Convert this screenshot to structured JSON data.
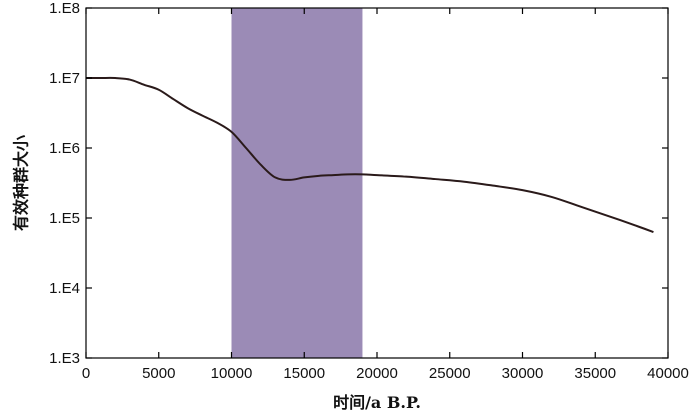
{
  "chart_data": {
    "type": "line",
    "xlabel": "时间/a B.P.",
    "ylabel": "有效种群大小",
    "xlim": [
      0,
      40000
    ],
    "ylim": [
      1000,
      100000000
    ],
    "y_scale": "log",
    "grid": false,
    "x_ticks": [
      0,
      5000,
      10000,
      15000,
      20000,
      25000,
      30000,
      35000,
      40000
    ],
    "x_tick_labels": [
      "0",
      "5000",
      "10000",
      "15000",
      "20000",
      "25000",
      "30000",
      "35000",
      "40000"
    ],
    "y_ticks": [
      1000,
      10000,
      100000,
      1000000,
      10000000,
      100000000
    ],
    "y_tick_labels": [
      "1.E3",
      "1.E4",
      "1.E5",
      "1.E6",
      "1.E7",
      "1.E8"
    ],
    "shaded_region": {
      "x": [
        10000,
        19000
      ],
      "color": "#9b8bb6"
    },
    "line_color": "#2a1a1a",
    "series": [
      {
        "x": [
          0,
          1000,
          2000,
          3000,
          4000,
          5000,
          6000,
          7000,
          8000,
          9000,
          10000,
          11000,
          12000,
          13000,
          14000,
          15000,
          16000,
          17000,
          18000,
          19000,
          20000,
          22000,
          24000,
          26000,
          28000,
          30000,
          32000,
          34000,
          36000,
          38000,
          39000
        ],
        "y": [
          10000000,
          10000000,
          10000000,
          9500000,
          8000000,
          6800000,
          5000000,
          3700000,
          2900000,
          2300000,
          1700000,
          1000000,
          580000,
          380000,
          350000,
          380000,
          400000,
          410000,
          420000,
          420000,
          410000,
          390000,
          360000,
          330000,
          290000,
          250000,
          200000,
          145000,
          105000,
          75000,
          63000
        ]
      }
    ]
  }
}
